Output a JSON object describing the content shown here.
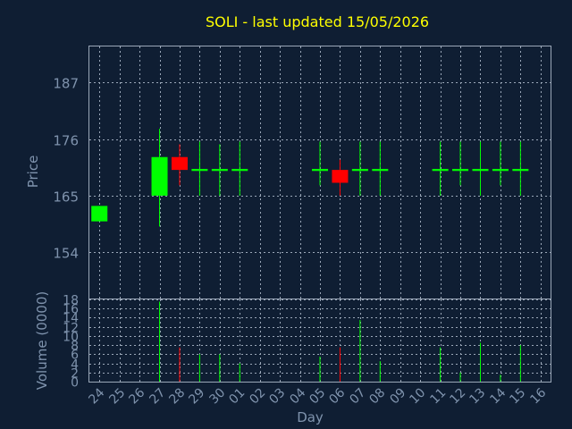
{
  "chart_data": {
    "type": "candlestick",
    "title": "SOLI - last updated 15/05/2026",
    "ylabel_price": "Price",
    "ylabel_volume": "Volume (0000)",
    "xlabel": "Day",
    "x_ticks": [
      "24",
      "25",
      "26",
      "27",
      "28",
      "29",
      "30",
      "01",
      "02",
      "03",
      "04",
      "05",
      "06",
      "07",
      "08",
      "09",
      "10",
      "11",
      "12",
      "13",
      "14",
      "15",
      "16"
    ],
    "price_ylim": [
      145,
      194
    ],
    "price_ticks": [
      154,
      165,
      176,
      187
    ],
    "volume_ylim": [
      0,
      18
    ],
    "volume_ticks": [
      0,
      2,
      4,
      6,
      8,
      10,
      12,
      14,
      16,
      18
    ],
    "grid": true,
    "colors": {
      "up": "#00ff00",
      "down": "#ff0000",
      "title": "#ffff00",
      "axis_text": "#7f93ad",
      "background": "#0f1e33"
    },
    "candles": [
      {
        "day": "24",
        "open": 160,
        "high": 163,
        "low": 160,
        "close": 163,
        "volume": 0
      },
      {
        "day": "27",
        "open": 165,
        "high": 178,
        "low": 159,
        "close": 172.5,
        "volume": 17.5
      },
      {
        "day": "28",
        "open": 172.5,
        "high": 175,
        "low": 167,
        "close": 170,
        "volume": 7.5
      },
      {
        "day": "29",
        "open": 169.8,
        "high": 175.5,
        "low": 165,
        "close": 170.2,
        "volume": 6
      },
      {
        "day": "30",
        "open": 169.8,
        "high": 175,
        "low": 165,
        "close": 170.2,
        "volume": 6
      },
      {
        "day": "01",
        "open": 169.8,
        "high": 175.5,
        "low": 165,
        "close": 170.2,
        "volume": 4
      },
      {
        "day": "05",
        "open": 169.8,
        "high": 175.5,
        "low": 167,
        "close": 170.2,
        "volume": 5.5
      },
      {
        "day": "06",
        "open": 170,
        "high": 172,
        "low": 165,
        "close": 167.5,
        "volume": 7.5
      },
      {
        "day": "07",
        "open": 169.8,
        "high": 175.5,
        "low": 165,
        "close": 170.2,
        "volume": 13.5
      },
      {
        "day": "08",
        "open": 169.8,
        "high": 175.5,
        "low": 165,
        "close": 170.2,
        "volume": 4.5
      },
      {
        "day": "11",
        "open": 169.8,
        "high": 175.5,
        "low": 165,
        "close": 170.2,
        "volume": 7.5
      },
      {
        "day": "12",
        "open": 169.8,
        "high": 175.5,
        "low": 167,
        "close": 170.2,
        "volume": 2
      },
      {
        "day": "13",
        "open": 169.8,
        "high": 175.5,
        "low": 165,
        "close": 170.2,
        "volume": 8.5
      },
      {
        "day": "14",
        "open": 169.8,
        "high": 175.5,
        "low": 167,
        "close": 170.2,
        "volume": 1.5
      },
      {
        "day": "15",
        "open": 169.8,
        "high": 175.5,
        "low": 165,
        "close": 170.2,
        "volume": 8
      }
    ]
  }
}
